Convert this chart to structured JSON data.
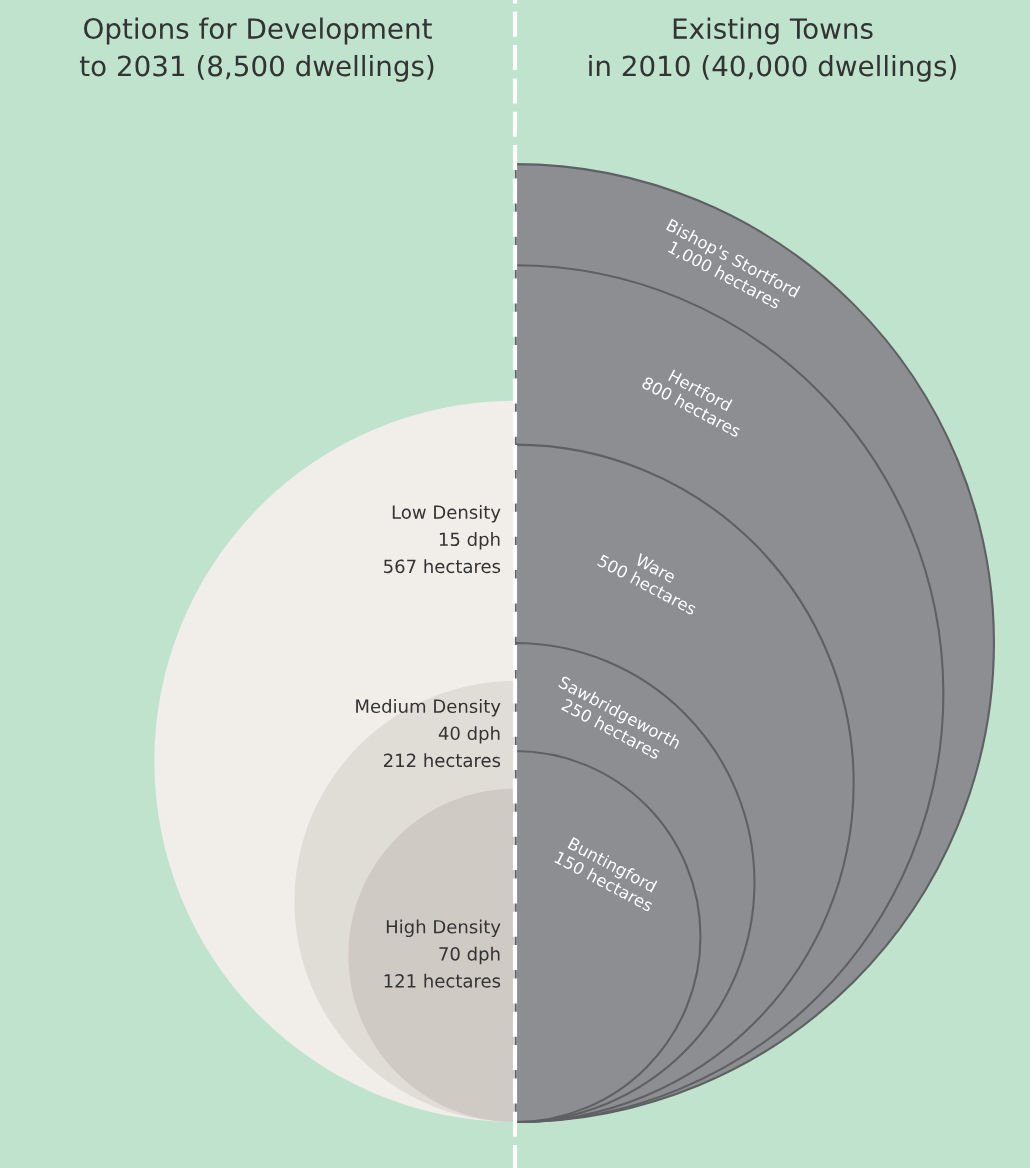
{
  "chart_data": [
    {
      "type": "other",
      "title": "Options for Development\nto 2031 (8,500 dwellings)",
      "categories": [
        "Low Density\n15 dph",
        "Medium Density\n40 dph",
        "High Density\n70 dph"
      ],
      "values": [
        567,
        212,
        121
      ],
      "value_labels": [
        "567 hectares",
        "212 hectares",
        "121 hectares"
      ],
      "colors": [
        "#f1eeea",
        "#e0dcd6",
        "#cfcac3"
      ]
    },
    {
      "type": "other",
      "title": "Existing Towns\nin 2010 (40,000 dwellings)",
      "categories": [
        "Bishop's Stortford",
        "Hertford",
        "Ware",
        "Sawbridgeworth",
        "Buntingford"
      ],
      "values": [
        1000,
        800,
        500,
        250,
        150
      ],
      "value_labels": [
        "1,000 hectares",
        "800 hectares",
        "500 hectares",
        "250 hectares",
        "150 hectares"
      ],
      "colors": [
        "#8d8e92",
        "#8d8e92",
        "#8d8e92",
        "#8d8e92",
        "#8d8e92"
      ]
    }
  ]
}
